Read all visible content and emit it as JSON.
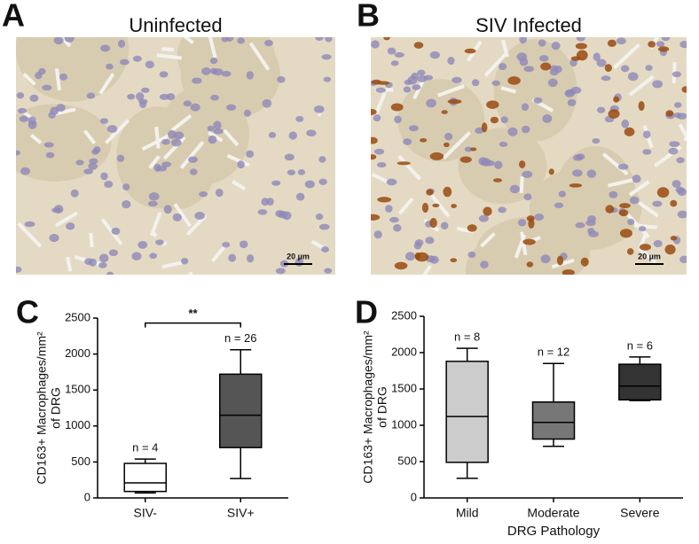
{
  "images": [
    {
      "letter": "A",
      "title": "Uninfected",
      "scale_bar": "20 µm"
    },
    {
      "letter": "B",
      "title": "SIV Infected",
      "scale_bar": "20 µm"
    }
  ],
  "chart_data": [
    {
      "type": "box",
      "letter": "C",
      "y_label": [
        "CD163+ Macrophages/mm²",
        "of DRG"
      ],
      "categories": [
        "SIV-",
        "SIV+"
      ],
      "stats": [
        [
          70,
          90,
          210,
          480,
          540
        ],
        [
          270,
          700,
          1150,
          1720,
          2060
        ]
      ],
      "colors": [
        "#ffffff",
        "#555555"
      ],
      "n_labels": [
        "n = 4",
        "n = 26"
      ],
      "significance": {
        "label": "**",
        "y": 2430
      },
      "ylim": [
        0,
        2500
      ],
      "yticks": [
        0,
        500,
        1000,
        1500,
        2000,
        2500
      ]
    },
    {
      "type": "box",
      "letter": "D",
      "y_label": [
        "CD163+ Macrophages/mm²",
        "of DRG"
      ],
      "x_label": "DRG Pathology",
      "categories": [
        "Mild",
        "Moderate",
        "Severe"
      ],
      "stats": [
        [
          270,
          490,
          1120,
          1880,
          2060
        ],
        [
          710,
          810,
          1040,
          1320,
          1850
        ],
        [
          1340,
          1350,
          1540,
          1840,
          1940
        ]
      ],
      "colors": [
        "#cccccc",
        "#777777",
        "#333333"
      ],
      "n_labels": [
        "n = 8",
        "n = 12",
        "n = 6"
      ],
      "ylim": [
        0,
        2500
      ],
      "yticks": [
        0,
        500,
        1000,
        1500,
        2000,
        2500
      ]
    }
  ]
}
